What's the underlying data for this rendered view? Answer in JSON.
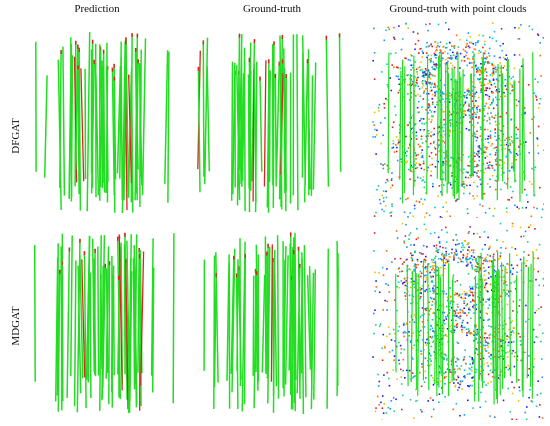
{
  "columns": [
    "Prediction",
    "Ground-truth",
    "Ground-truth with point clouds"
  ],
  "rows": [
    "DFGAT",
    "MDGAT"
  ],
  "colors": {
    "correct_match": "#22dd22",
    "wrong_match": "#dd2222",
    "cloud_palette": [
      "#1a1aff",
      "#1e90ff",
      "#00c8e0",
      "#20d080",
      "#f0c000",
      "#ff6a00",
      "#e02020"
    ]
  }
}
